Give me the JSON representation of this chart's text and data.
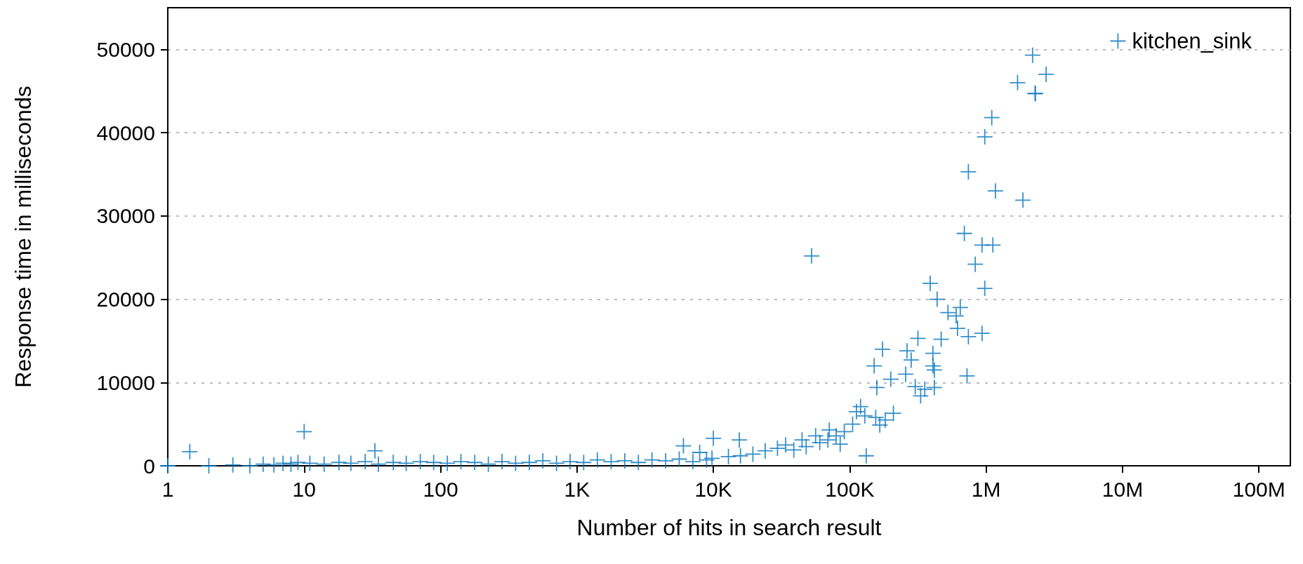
{
  "chart_data": {
    "type": "scatter",
    "xlabel": "Number of hits in search result",
    "ylabel": "Response time in milliseconds",
    "log": "x",
    "xlim": [
      1,
      170000000
    ],
    "xticks": [
      {
        "value": 1,
        "label": "1"
      },
      {
        "value": 10,
        "label": "10"
      },
      {
        "value": 100,
        "label": "100"
      },
      {
        "value": 1000,
        "label": "1K"
      },
      {
        "value": 10000,
        "label": "10K"
      },
      {
        "value": 100000,
        "label": "100K"
      },
      {
        "value": 1000000,
        "label": "1M"
      },
      {
        "value": 10000000,
        "label": "10M"
      },
      {
        "value": 100000000,
        "label": "100M"
      }
    ],
    "ylim": [
      0,
      55000
    ],
    "yticks": [
      0,
      10000,
      20000,
      30000,
      40000,
      50000
    ],
    "grid": "y",
    "legend": "top right",
    "marker": "cross",
    "series": [
      {
        "name": "kitchen_sink",
        "color": "#0072bd",
        "x": [
          1,
          1,
          2,
          3,
          4,
          5,
          6,
          7,
          8,
          9,
          11,
          14,
          18,
          22,
          28,
          35,
          45,
          56,
          71,
          89,
          112,
          141,
          178,
          224,
          282,
          355,
          447,
          562,
          708,
          891,
          1120,
          1410,
          1780,
          2240,
          2820,
          3550,
          4470,
          5620,
          7080,
          8910,
          10,
          1.45,
          33,
          112000,
          129000,
          155000,
          182000,
          209000,
          166000,
          120000,
          105000,
          91200,
          79400,
          69200,
          60300,
          47900,
          38900,
          85100,
          70800,
          56200,
          44700,
          33900,
          29500,
          24000,
          19500,
          15800,
          12900,
          10000,
          6030,
          15500,
          7940,
          9770,
          2190000,
          2750000,
          1700000,
          2290000,
          2290000,
          1100000,
          977000,
          741000,
          1170000,
          1860000,
          52500,
          692000,
          933000,
          1120000,
          832000,
          977000,
          389000,
          437000,
          525000,
          646000,
          603000,
          617000,
          741000,
          933000,
          468000,
          263000,
          316000,
          174000,
          151000,
          407000,
          407000,
          417000,
          724000,
          282000,
          257000,
          158000,
          200000,
          302000,
          355000,
          417000,
          331000,
          132000
        ],
        "values": [
          0,
          0,
          0,
          100,
          0,
          200,
          100,
          300,
          200,
          400,
          300,
          200,
          400,
          300,
          500,
          200,
          400,
          300,
          500,
          400,
          300,
          500,
          400,
          200,
          500,
          300,
          400,
          600,
          300,
          500,
          400,
          700,
          500,
          600,
          400,
          700,
          600,
          800,
          500,
          700,
          4100,
          1700,
          1800,
          6500,
          6000,
          5800,
          5500,
          6300,
          4900,
          7100,
          5000,
          4100,
          3600,
          3100,
          2800,
          2300,
          1900,
          2600,
          4300,
          3600,
          3100,
          2500,
          2100,
          1800,
          1400,
          1200,
          1100,
          3300,
          2400,
          3100,
          1600,
          900,
          49300,
          47000,
          46000,
          44700,
          44700,
          41800,
          39500,
          35300,
          33000,
          31900,
          25200,
          27900,
          26500,
          26500,
          24200,
          21300,
          21900,
          20000,
          18400,
          19000,
          18000,
          16500,
          15500,
          15900,
          15200,
          13800,
          15300,
          14000,
          12000,
          13500,
          12000,
          11500,
          10800,
          12700,
          11000,
          9400,
          10400,
          9500,
          9200,
          9400,
          8400,
          1200
        ]
      }
    ]
  }
}
